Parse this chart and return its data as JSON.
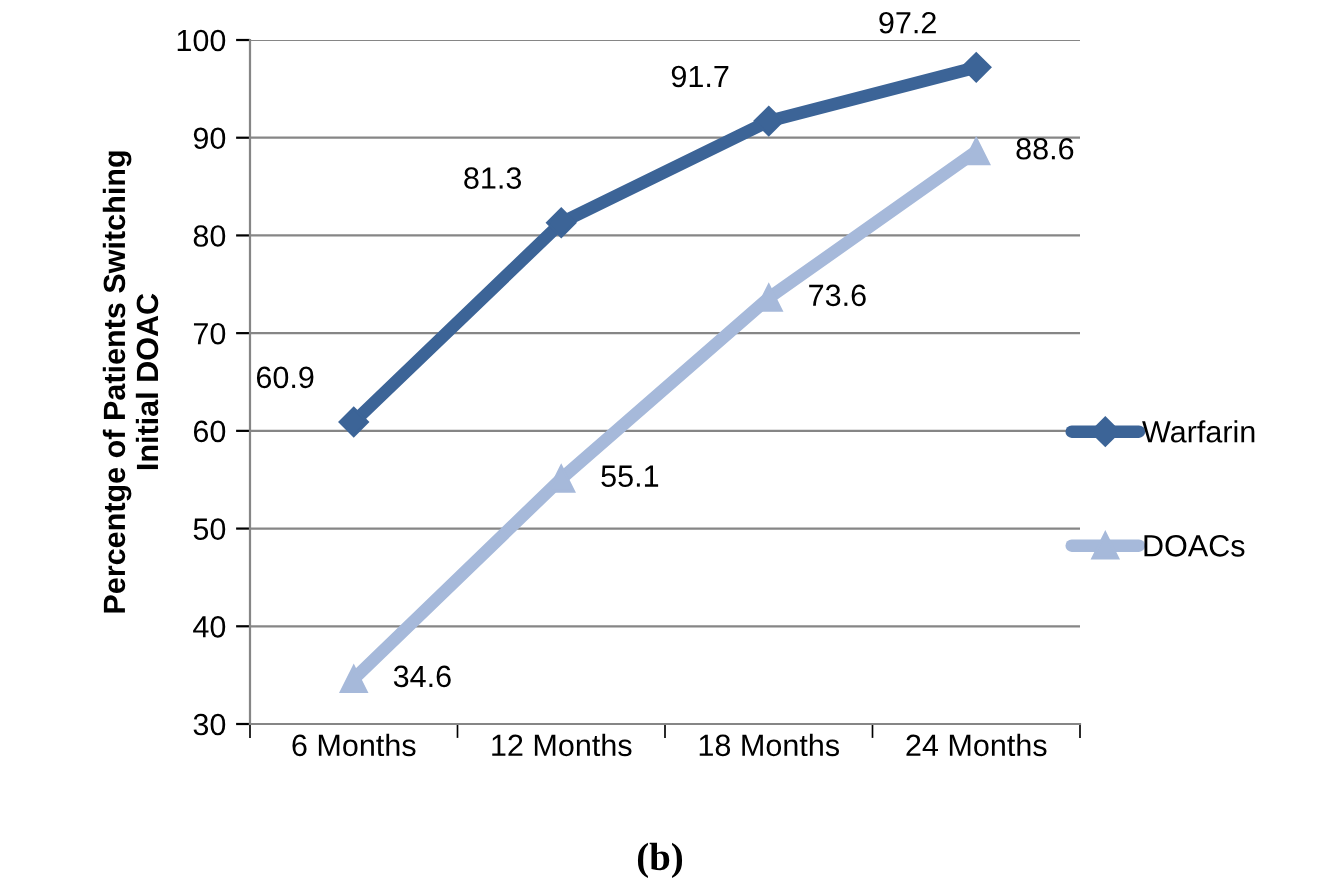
{
  "chart_data": {
    "type": "line",
    "ylabel": "Percentge of Patients Switching\nInitial DOAC",
    "categories": [
      "6 Months",
      "12 Months",
      "18 Months",
      "24 Months"
    ],
    "series": [
      {
        "name": "Warfarin",
        "color": "#3c6497",
        "values": [
          60.9,
          81.3,
          91.7,
          97.2
        ],
        "marker": "diamond"
      },
      {
        "name": "DOACs",
        "color": "#a6b9da",
        "values": [
          34.6,
          55.1,
          73.6,
          88.6
        ],
        "marker": "triangle"
      }
    ],
    "ylim": [
      30,
      100
    ],
    "yticks": [
      30,
      40,
      50,
      60,
      70,
      80,
      90,
      100
    ],
    "grid": "y",
    "legend": "right",
    "data_labels": true,
    "line_style": "solid",
    "annotations": [
      "(b)"
    ]
  }
}
